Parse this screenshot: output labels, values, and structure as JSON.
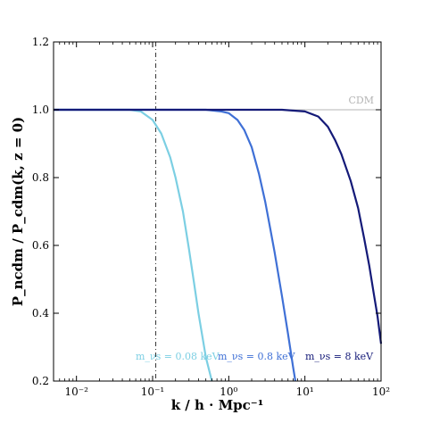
{
  "chart_data": {
    "type": "line",
    "xlabel": "k / h · Mpc⁻¹",
    "ylabel": "P_ncdm / P_cdm(k, z = 0)",
    "x_scale": "log",
    "xlim": [
      0.005,
      100
    ],
    "ylim": [
      0.2,
      1.2
    ],
    "x_ticks": [
      {
        "value": 0.01,
        "label": "10⁻²"
      },
      {
        "value": 0.1,
        "label": "10⁻¹"
      },
      {
        "value": 1,
        "label": "10⁰"
      },
      {
        "value": 10,
        "label": "10¹"
      },
      {
        "value": 100,
        "label": "10²"
      }
    ],
    "y_ticks": [
      {
        "value": 0.2,
        "label": "0.2"
      },
      {
        "value": 0.4,
        "label": "0.4"
      },
      {
        "value": 0.6,
        "label": "0.6"
      },
      {
        "value": 0.8,
        "label": "0.8"
      },
      {
        "value": 1.0,
        "label": "1.0"
      },
      {
        "value": 1.2,
        "label": "1.2"
      }
    ],
    "grid": false,
    "reference_lines": [
      {
        "orientation": "horizontal",
        "value": 1.0,
        "label": "CDM",
        "color": "#b4b4b4",
        "style": "solid"
      },
      {
        "orientation": "vertical",
        "value": 0.11,
        "label": "",
        "color": "#333333",
        "style": "dash-dot"
      }
    ],
    "series": [
      {
        "name": "m_νs = 0.08 keV",
        "color": "#7ccfe3",
        "x": [
          0.005,
          0.03,
          0.05,
          0.07,
          0.1,
          0.13,
          0.17,
          0.2,
          0.25,
          0.3,
          0.35,
          0.4,
          0.5,
          0.6
        ],
        "y": [
          1.0,
          1.0,
          1.0,
          0.995,
          0.97,
          0.93,
          0.86,
          0.8,
          0.7,
          0.59,
          0.49,
          0.4,
          0.27,
          0.2
        ]
      },
      {
        "name": "m_νs = 0.8 keV",
        "color": "#3f70d6",
        "x": [
          0.005,
          0.5,
          0.8,
          1.0,
          1.3,
          1.6,
          2.0,
          2.5,
          3.0,
          3.5,
          4.0,
          5.0,
          6.0,
          7.0,
          7.5
        ],
        "y": [
          1.0,
          1.0,
          0.995,
          0.99,
          0.97,
          0.94,
          0.89,
          0.81,
          0.73,
          0.65,
          0.58,
          0.45,
          0.34,
          0.24,
          0.2
        ]
      },
      {
        "name": "m_νs = 8 keV",
        "color": "#141a78",
        "x": [
          0.005,
          5,
          10,
          15,
          20,
          25,
          30,
          40,
          50,
          60,
          70,
          80,
          90,
          100
        ],
        "y": [
          1.0,
          1.0,
          0.995,
          0.98,
          0.95,
          0.91,
          0.87,
          0.79,
          0.71,
          0.62,
          0.54,
          0.46,
          0.39,
          0.31
        ]
      }
    ]
  }
}
